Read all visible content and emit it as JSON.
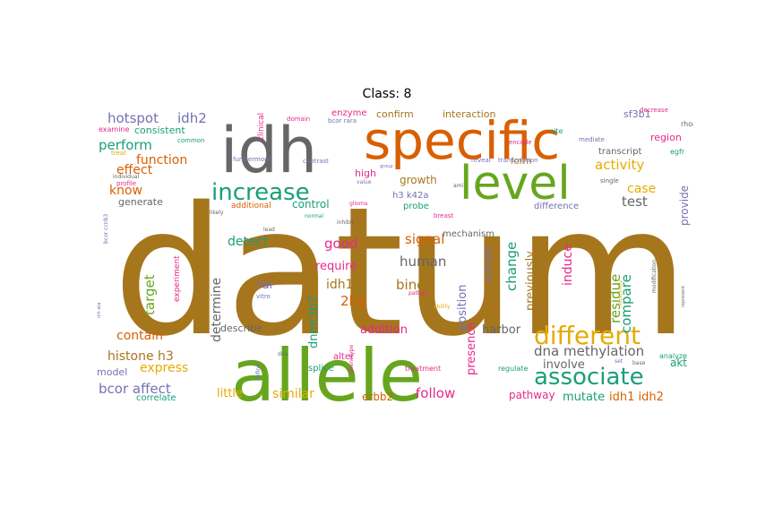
{
  "title": "Class: 8",
  "words": [
    {
      "text": "datum",
      "color": "#a6761d"
    },
    {
      "text": "allele",
      "color": "#66a61e"
    },
    {
      "text": "specific",
      "color": "#d95f02"
    },
    {
      "text": "idh",
      "color": "#666666"
    },
    {
      "text": "level",
      "color": "#66a61e"
    },
    {
      "text": "increase",
      "color": "#1b9e77"
    },
    {
      "text": "different",
      "color": "#e6ab02"
    },
    {
      "text": "associate",
      "color": "#1b9e77"
    },
    {
      "text": "hotspot",
      "color": "#7570b3"
    },
    {
      "text": "idh2",
      "color": "#7570b3"
    },
    {
      "text": "perform",
      "color": "#1b9e77"
    },
    {
      "text": "function",
      "color": "#d95f02"
    },
    {
      "text": "effect",
      "color": "#d95f02"
    },
    {
      "text": "know",
      "color": "#d95f02"
    },
    {
      "text": "activity",
      "color": "#e6ab02"
    },
    {
      "text": "case",
      "color": "#e6ab02"
    },
    {
      "text": "test",
      "color": "#666666"
    },
    {
      "text": "detect",
      "color": "#1b9e77"
    },
    {
      "text": "good",
      "color": "#e7298a"
    },
    {
      "text": "signal",
      "color": "#d95f02"
    },
    {
      "text": "human",
      "color": "#666666"
    },
    {
      "text": "target",
      "color": "#66a61e"
    },
    {
      "text": "determine",
      "color": "#666666"
    },
    {
      "text": "idh1",
      "color": "#a6761d"
    },
    {
      "text": "2hg",
      "color": "#d95f02"
    },
    {
      "text": "bind",
      "color": "#a6761d"
    },
    {
      "text": "require",
      "color": "#e7298a"
    },
    {
      "text": "far",
      "color": "#7570b3"
    },
    {
      "text": "contain",
      "color": "#d95f02"
    },
    {
      "text": "histone h3",
      "color": "#a6761d"
    },
    {
      "text": "express",
      "color": "#e6ab02"
    },
    {
      "text": "bcor affect",
      "color": "#7570b3"
    },
    {
      "text": "similar",
      "color": "#e6ab02"
    },
    {
      "text": "follow",
      "color": "#e7298a"
    },
    {
      "text": "dna methylation",
      "color": "#666666"
    },
    {
      "text": "involve",
      "color": "#666666"
    },
    {
      "text": "mutate",
      "color": "#1b9e77"
    },
    {
      "text": "idh1 idh2",
      "color": "#d95f02"
    },
    {
      "text": "compare",
      "color": "#1b9e77"
    },
    {
      "text": "residue",
      "color": "#66a61e"
    },
    {
      "text": "induce",
      "color": "#e7298a"
    },
    {
      "text": "change",
      "color": "#1b9e77"
    },
    {
      "text": "previously",
      "color": "#a6761d"
    },
    {
      "text": "position",
      "color": "#7570b3"
    },
    {
      "text": "presence",
      "color": "#e7298a"
    },
    {
      "text": "harbor",
      "color": "#666666"
    },
    {
      "text": "addition",
      "color": "#e7298a"
    },
    {
      "text": "dnmt3b7",
      "color": "#1b9e77"
    },
    {
      "text": "growth",
      "color": "#a6761d"
    },
    {
      "text": "control",
      "color": "#1b9e77"
    },
    {
      "text": "generate",
      "color": "#666666"
    },
    {
      "text": "confirm",
      "color": "#a6761d"
    },
    {
      "text": "interaction",
      "color": "#a6761d"
    },
    {
      "text": "sf3b1",
      "color": "#7570b3"
    },
    {
      "text": "region",
      "color": "#e7298a"
    },
    {
      "text": "form",
      "color": "#a6761d"
    },
    {
      "text": "transcript",
      "color": "#666666"
    },
    {
      "text": "provide",
      "color": "#7570b3"
    },
    {
      "text": "little",
      "color": "#e6ab02"
    },
    {
      "text": "erbb2",
      "color": "#d95f02"
    },
    {
      "text": "describe",
      "color": "#666666"
    },
    {
      "text": "model",
      "color": "#7570b3"
    },
    {
      "text": "correlate",
      "color": "#1b9e77"
    },
    {
      "text": "pathway",
      "color": "#e7298a"
    },
    {
      "text": "akt",
      "color": "#1b9e77"
    },
    {
      "text": "consistent",
      "color": "#1b9e77"
    },
    {
      "text": "enzyme",
      "color": "#e7298a"
    },
    {
      "text": "high",
      "color": "#e7298a"
    },
    {
      "text": "h3 k42a",
      "color": "#7570b3"
    },
    {
      "text": "probe",
      "color": "#1b9e77"
    },
    {
      "text": "mechanism",
      "color": "#666666"
    },
    {
      "text": "difference",
      "color": "#7570b3"
    },
    {
      "text": "activate",
      "color": "#7570b3"
    },
    {
      "text": "splice",
      "color": "#1b9e77"
    },
    {
      "text": "alter",
      "color": "#e7298a"
    },
    {
      "text": "additional",
      "color": "#d95f02"
    },
    {
      "text": "clinical",
      "color": "#e7298a"
    },
    {
      "text": "experiment",
      "color": "#e7298a"
    },
    {
      "text": "examine",
      "color": "#e7298a"
    },
    {
      "text": "treatment",
      "color": "#e7298a"
    },
    {
      "text": "regulate",
      "color": "#1b9e77"
    },
    {
      "text": "analyze",
      "color": "#1b9e77"
    },
    {
      "text": "site",
      "color": "#1b9e77"
    },
    {
      "text": "egfr",
      "color": "#1b9e77"
    },
    {
      "text": "rhoa",
      "color": "#666666"
    },
    {
      "text": "decrease",
      "color": "#e7298a"
    },
    {
      "text": "mediate",
      "color": "#7570b3"
    },
    {
      "text": "encode",
      "color": "#e7298a"
    },
    {
      "text": "reveal",
      "color": "#7570b3"
    },
    {
      "text": "transcription",
      "color": "#7570b3"
    },
    {
      "text": "single",
      "color": "#666666"
    },
    {
      "text": "domain",
      "color": "#e7298a"
    },
    {
      "text": "bcor rara",
      "color": "#7570b3"
    },
    {
      "text": "furthermore",
      "color": "#7570b3"
    },
    {
      "text": "contrast",
      "color": "#7570b3"
    },
    {
      "text": "common",
      "color": "#1b9e77"
    },
    {
      "text": "treat",
      "color": "#e6ab02"
    },
    {
      "text": "individual",
      "color": "#666666"
    },
    {
      "text": "profile",
      "color": "#e7298a"
    },
    {
      "text": "likely",
      "color": "#666666"
    },
    {
      "text": "value",
      "color": "#7570b3"
    },
    {
      "text": "normal",
      "color": "#1b9e77"
    },
    {
      "text": "breast",
      "color": "#e7298a"
    },
    {
      "text": "glioma",
      "color": "#e7298a"
    },
    {
      "text": "inhibit",
      "color": "#666666"
    },
    {
      "text": "lead",
      "color": "#666666"
    },
    {
      "text": "vitro",
      "color": "#7570b3"
    },
    {
      "text": "ability",
      "color": "#e6ab02"
    },
    {
      "text": "pattern",
      "color": "#e7298a"
    },
    {
      "text": "phenotype",
      "color": "#e7298a"
    },
    {
      "text": "dna",
      "color": "#666666"
    },
    {
      "text": "base",
      "color": "#666666"
    },
    {
      "text": "set",
      "color": "#7570b3"
    },
    {
      "text": "modification",
      "color": "#666666"
    },
    {
      "text": "represent",
      "color": "#666666"
    },
    {
      "text": "respectively",
      "color": "#e6ab02"
    },
    {
      "text": "bcor ccnb3",
      "color": "#7570b3"
    },
    {
      "text": "nih ata",
      "color": "#7570b3"
    },
    {
      "text": "define",
      "color": "#7570b3"
    },
    {
      "text": "group",
      "color": "#7570b3"
    },
    {
      "text": "ami",
      "color": "#666666"
    }
  ]
}
